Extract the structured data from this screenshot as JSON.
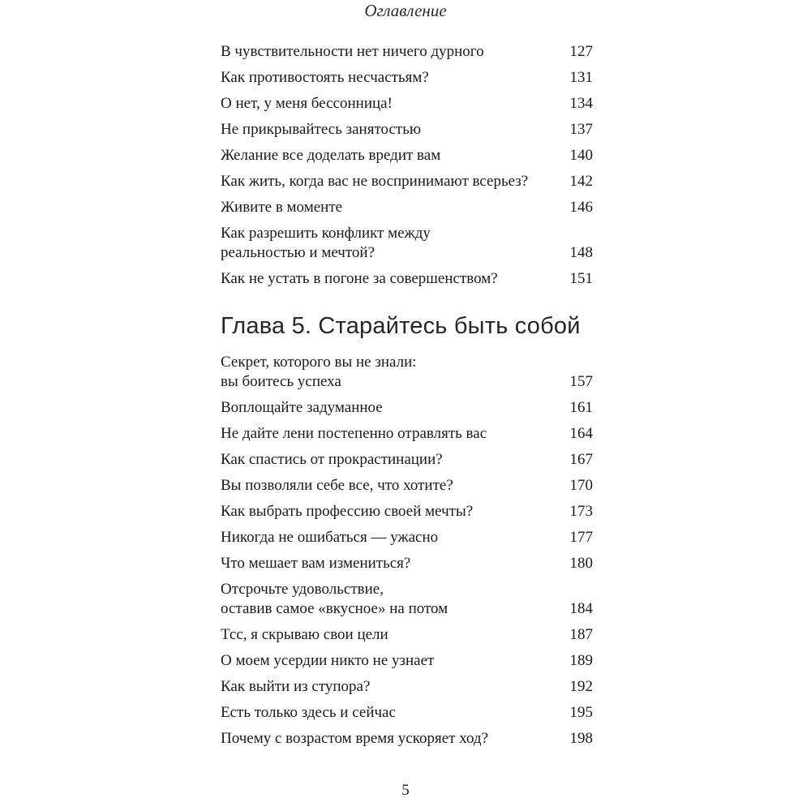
{
  "page": {
    "header": "Оглавление",
    "footer_page_number": "5"
  },
  "section_heading": "Глава 5. Старайтесь быть собой",
  "toc_before_heading": [
    {
      "title": "В чувствительности нет ничего дурного",
      "page": "127"
    },
    {
      "title": "Как противостоять несчастьям?",
      "page": "131"
    },
    {
      "title": "О нет, у меня бессонница!",
      "page": "134"
    },
    {
      "title": "Не прикрывайтесь занятостью",
      "page": "137"
    },
    {
      "title": "Желание все доделать вредит вам",
      "page": "140"
    },
    {
      "title": "Как жить, когда вас не воспринимают всерьез?",
      "page": "142"
    },
    {
      "title": "Живите в моменте",
      "page": "146"
    },
    {
      "title": "Как разрешить конфликт между\nреальностью и мечтой?",
      "page": "148"
    },
    {
      "title": "Как не устать в погоне за совершенством?",
      "page": "151"
    }
  ],
  "toc_after_heading": [
    {
      "title": "Секрет, которого вы не знали:\nвы боитесь успеха",
      "page": "157"
    },
    {
      "title": "Воплощайте задуманное",
      "page": "161"
    },
    {
      "title": "Не дайте лени постепенно отравлять вас",
      "page": "164"
    },
    {
      "title": "Как спастись от прокрастинации?",
      "page": "167"
    },
    {
      "title": "Вы позволяли себе все, что хотите?",
      "page": "170"
    },
    {
      "title": "Как выбрать профессию своей мечты?",
      "page": "173"
    },
    {
      "title": "Никогда не ошибаться — ужасно",
      "page": "177"
    },
    {
      "title": "Что мешает вам измениться?",
      "page": "180"
    },
    {
      "title": "Отсрочьте удовольствие,\nоставив самое «вкусное» на потом",
      "page": "184"
    },
    {
      "title": "Тсс, я скрываю свои цели",
      "page": "187"
    },
    {
      "title": "О моем усердии никто не узнает",
      "page": "189"
    },
    {
      "title": "Как выйти из ступора?",
      "page": "192"
    },
    {
      "title": "Есть только здесь и сейчас",
      "page": "195"
    },
    {
      "title": "Почему с возрастом время ускоряет ход?",
      "page": "198"
    }
  ]
}
